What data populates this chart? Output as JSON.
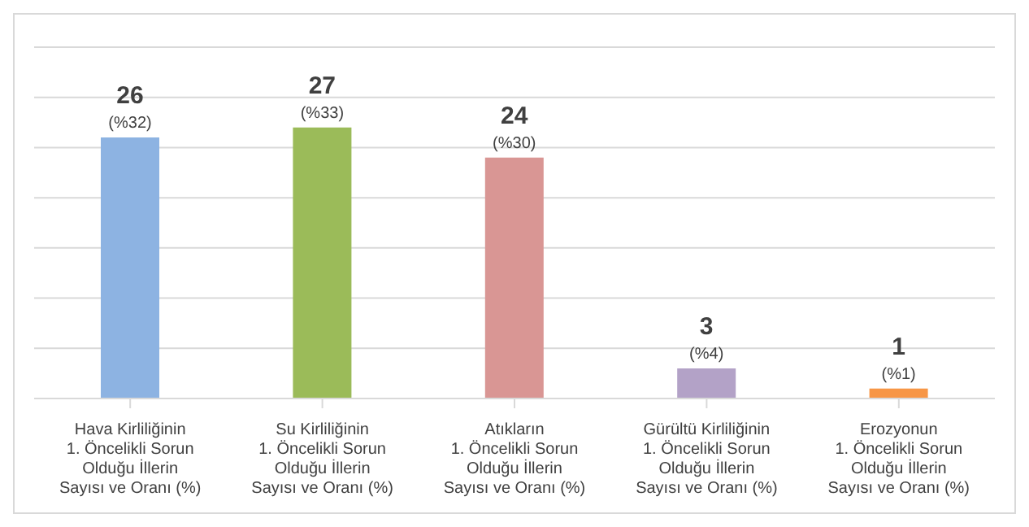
{
  "chart_data": {
    "type": "bar",
    "categories": [
      "Hava Kirliliğinin\n1. Öncelikli Sorun\nOlduğu İllerin\nSayısı ve Oranı (%)",
      "Su Kirliliğinin\n1. Öncelikli Sorun\nOlduğu İllerin\nSayısı ve Oranı (%)",
      "Atıkların\n1. Öncelikli Sorun\nOlduğu İllerin\nSayısı ve Oranı (%)",
      "Gürültü Kirliliğinin\n1. Öncelikli Sorun\nOlduğu İllerin\nSayısı ve Oranı (%)",
      "Erozyonun\n1. Öncelikli Sorun\nOlduğu İllerin\nSayısı ve Oranı (%)"
    ],
    "values": [
      26,
      27,
      24,
      3,
      1
    ],
    "colors": [
      "#8db3e2",
      "#9bbb59",
      "#d99694",
      "#b3a2c7",
      "#f79646"
    ],
    "value_labels": [
      "26\n(%32)",
      "27\n(%33)",
      "24\n(%30)",
      "3\n(%4)",
      "1\n(%1)"
    ],
    "ylim": [
      0,
      35
    ],
    "yticks": [
      {
        "value": 0,
        "label": null
      },
      {
        "value": 5,
        "label": null
      },
      {
        "value": 10,
        "label": null
      },
      {
        "value": 15,
        "label": null
      },
      {
        "value": 20,
        "label": null
      },
      {
        "value": 25,
        "label": null
      },
      {
        "value": 30,
        "label": null
      },
      {
        "value": 35,
        "label": null
      }
    ],
    "grid": "y",
    "tick_labels": "x"
  }
}
